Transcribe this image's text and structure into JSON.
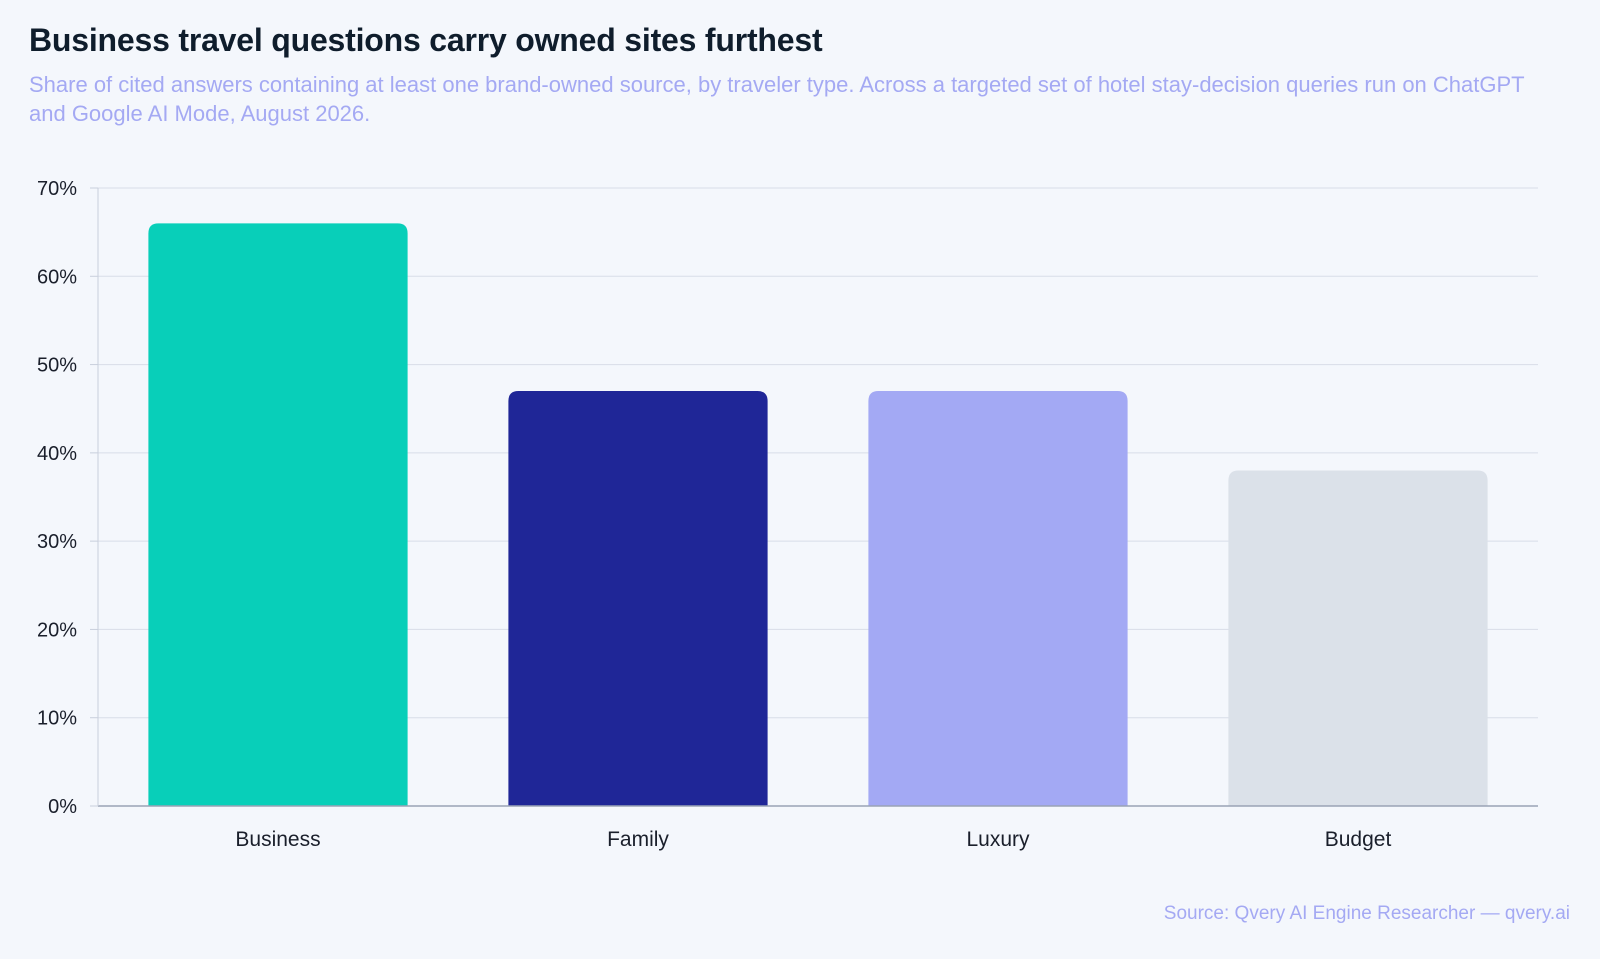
{
  "title": "Business travel questions carry owned sites furthest",
  "subtitle": "Share of cited answers containing at least one brand-owned source, by traveler type. Across a targeted set of hotel stay-decision queries run on ChatGPT and Google AI Mode, August 2026.",
  "source": "Source: Qvery AI Engine Researcher — qvery.ai",
  "chart_data": {
    "type": "bar",
    "categories": [
      "Business",
      "Family",
      "Luxury",
      "Budget"
    ],
    "values": [
      66,
      47,
      47,
      38
    ],
    "colors": [
      "#08cfb9",
      "#1f2697",
      "#a3a9f4",
      "#dbe1e9"
    ],
    "ylim": [
      0,
      70
    ],
    "yticks": [
      0,
      10,
      20,
      30,
      40,
      50,
      60,
      70
    ],
    "ytick_suffix": "%",
    "grid": true
  }
}
